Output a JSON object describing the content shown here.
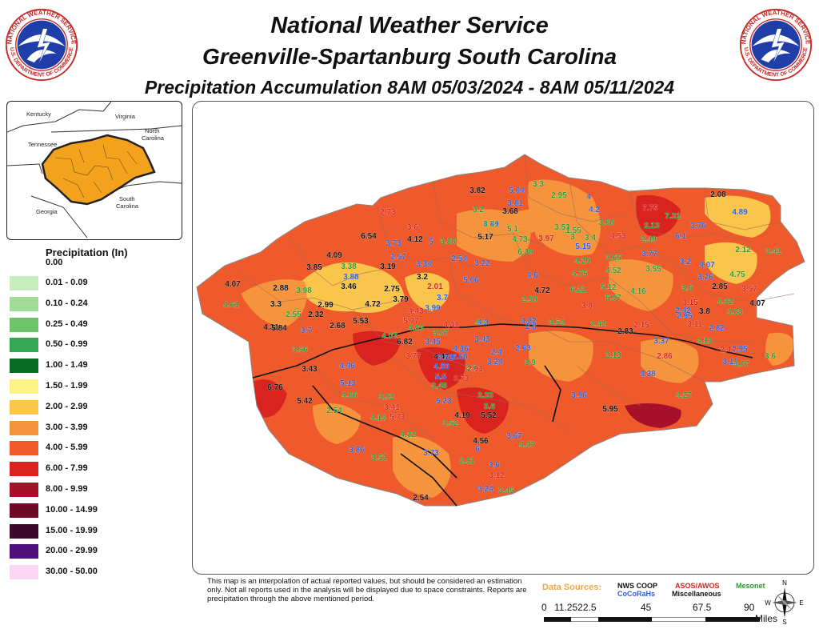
{
  "header": {
    "title_line1": "National Weather Service",
    "title_line2": "Greenville-Spartanburg South Carolina",
    "title_line3": "Precipitation Accumulation 8AM 05/03/2024 - 8AM 05/11/2024"
  },
  "logo": {
    "ring_text_top": "NATIONAL WEATHER SERVICE",
    "ring_text_bottom": "U.S. DEPARTMENT OF COMMERCE",
    "icon": "nws-logo"
  },
  "inset_map": {
    "labels": {
      "kentucky": "Kentucky",
      "virginia": "Virginia",
      "north_carolina_1": "North",
      "north_carolina_2": "Carolina",
      "tennessee": "Tennessee",
      "south_carolina_1": "South",
      "south_carolina_2": "Carolina",
      "georgia": "Georgia"
    },
    "highlight_color": "#f2a21c"
  },
  "legend": {
    "title": "Precipitation (In)",
    "zero_label": "0.00",
    "items": [
      {
        "label": "0.01 - 0.09",
        "color": "#c6ecc0"
      },
      {
        "label": "0.10 - 0.24",
        "color": "#9fdc98"
      },
      {
        "label": "0.25 - 0.49",
        "color": "#6cc46b"
      },
      {
        "label": "0.50 - 0.99",
        "color": "#34a853"
      },
      {
        "label": "1.00 - 1.49",
        "color": "#0a6b26"
      },
      {
        "label": "1.50 - 1.99",
        "color": "#fbf28a"
      },
      {
        "label": "2.00 - 2.99",
        "color": "#f9c54a"
      },
      {
        "label": "3.00 - 3.99",
        "color": "#f5943c"
      },
      {
        "label": "4.00 - 5.99",
        "color": "#ef5a2c"
      },
      {
        "label": "6.00 - 7.99",
        "color": "#d8231f"
      },
      {
        "label": "8.00 - 9.99",
        "color": "#a8102a"
      },
      {
        "label": "10.00 - 14.99",
        "color": "#6e0a25"
      },
      {
        "label": "15.00 - 19.99",
        "color": "#3d0a2a"
      },
      {
        "label": "20.00 - 29.99",
        "color": "#4c0f7a"
      },
      {
        "label": "30.00 - 50.00",
        "color": "#fad6f0"
      }
    ]
  },
  "map": {
    "colors": {
      "base": "#ef5a2c",
      "light": "#f5943c",
      "yellow": "#f9c54a",
      "dark": "#d8231f",
      "darker": "#a8102a"
    },
    "source_colors": {
      "nws_coop": "#111111",
      "cocorahs": "#2b5fd9",
      "asos_awos": "#d8231f",
      "misc": "#111111",
      "mesonet": "#2e9b2e"
    },
    "readings": [
      {
        "v": "3.82",
        "s": "nws_coop"
      },
      {
        "v": "5.04",
        "s": "cocorahs"
      },
      {
        "v": "3.3",
        "s": "mesonet"
      },
      {
        "v": "2.95",
        "s": "mesonet"
      },
      {
        "v": "4",
        "s": "cocorahs"
      },
      {
        "v": "2.08",
        "s": "nws_coop"
      },
      {
        "v": "3.2",
        "s": "mesonet"
      },
      {
        "v": "3.81",
        "s": "cocorahs"
      },
      {
        "v": "3.68",
        "s": "nws_coop"
      },
      {
        "v": "4.2",
        "s": "cocorahs"
      },
      {
        "v": "7.75",
        "s": "asos_awos"
      },
      {
        "v": "4.89",
        "s": "cocorahs"
      },
      {
        "v": "2.73",
        "s": "asos_awos"
      },
      {
        "v": "4.89",
        "s": "cocorahs"
      },
      {
        "v": "3.71",
        "s": "mesonet"
      },
      {
        "v": "3.53",
        "s": "mesonet"
      },
      {
        "v": "3.08",
        "s": "mesonet"
      },
      {
        "v": "7.31",
        "s": "mesonet"
      },
      {
        "v": "2.13",
        "s": "mesonet"
      },
      {
        "v": "3.76",
        "s": "cocorahs"
      },
      {
        "v": "3.6",
        "s": "asos_awos"
      },
      {
        "v": "5.1",
        "s": "mesonet"
      },
      {
        "v": "1.55",
        "s": "mesonet"
      },
      {
        "v": "6.54",
        "s": "nws_coop"
      },
      {
        "v": "4.12",
        "s": "nws_coop"
      },
      {
        "v": "5",
        "s": "cocorahs"
      },
      {
        "v": "3.88",
        "s": "mesonet"
      },
      {
        "v": "5.17",
        "s": "nws_coop"
      },
      {
        "v": "4.73",
        "s": "mesonet"
      },
      {
        "v": "3.97",
        "s": "asos_awos"
      },
      {
        "v": "3",
        "s": "mesonet"
      },
      {
        "v": "3.4",
        "s": "mesonet"
      },
      {
        "v": "4.53",
        "s": "asos_awos"
      },
      {
        "v": "2.49",
        "s": "mesonet"
      },
      {
        "v": "6.1",
        "s": "cocorahs"
      },
      {
        "v": "3.73",
        "s": "cocorahs"
      },
      {
        "v": "2.57",
        "s": "cocorahs"
      },
      {
        "v": "5.15",
        "s": "cocorahs"
      },
      {
        "v": "4.09",
        "s": "nws_coop"
      },
      {
        "v": "6.38",
        "s": "mesonet"
      },
      {
        "v": "2.12",
        "s": "mesonet"
      },
      {
        "v": "3.41",
        "s": "mesonet"
      },
      {
        "v": "3.77",
        "s": "cocorahs"
      },
      {
        "v": "3.38",
        "s": "mesonet"
      },
      {
        "v": "2.54",
        "s": "cocorahs"
      },
      {
        "v": "3.22",
        "s": "cocorahs"
      },
      {
        "v": "3.85",
        "s": "nws_coop"
      },
      {
        "v": "3.19",
        "s": "nws_coop"
      },
      {
        "v": "3.34",
        "s": "cocorahs"
      },
      {
        "v": "4.29",
        "s": "mesonet"
      },
      {
        "v": "3.65",
        "s": "mesonet"
      },
      {
        "v": "3.2",
        "s": "cocorahs"
      },
      {
        "v": "4.07",
        "s": "cocorahs"
      },
      {
        "v": "3.88",
        "s": "cocorahs"
      },
      {
        "v": "3.2",
        "s": "nws_coop"
      },
      {
        "v": "4.75",
        "s": "mesonet"
      },
      {
        "v": "4.52",
        "s": "mesonet"
      },
      {
        "v": "3.55",
        "s": "mesonet"
      },
      {
        "v": "3.26",
        "s": "cocorahs"
      },
      {
        "v": "4.75",
        "s": "mesonet"
      },
      {
        "v": "4.07",
        "s": "nws_coop"
      },
      {
        "v": "2.88",
        "s": "nws_coop"
      },
      {
        "v": "3.98",
        "s": "mesonet"
      },
      {
        "v": "3.46",
        "s": "nws_coop"
      },
      {
        "v": "2.75",
        "s": "nws_coop"
      },
      {
        "v": "2.01",
        "s": "asos_awos"
      },
      {
        "v": "5.06",
        "s": "cocorahs"
      },
      {
        "v": "4.6",
        "s": "cocorahs"
      },
      {
        "v": "4.72",
        "s": "nws_coop"
      },
      {
        "v": "6.21",
        "s": "mesonet"
      },
      {
        "v": "5.12",
        "s": "mesonet"
      },
      {
        "v": "4.16",
        "s": "mesonet"
      },
      {
        "v": "3.6",
        "s": "mesonet"
      },
      {
        "v": "2.85",
        "s": "nws_coop"
      },
      {
        "v": "3.57",
        "s": "asos_awos"
      },
      {
        "v": "4.61",
        "s": "mesonet"
      },
      {
        "v": "3.3",
        "s": "nws_coop"
      },
      {
        "v": "2.99",
        "s": "nws_coop"
      },
      {
        "v": "4.72",
        "s": "nws_coop"
      },
      {
        "v": "3.79",
        "s": "nws_coop"
      },
      {
        "v": "3.7",
        "s": "cocorahs"
      },
      {
        "v": "5.97",
        "s": "mesonet"
      },
      {
        "v": "2.98",
        "s": "mesonet"
      },
      {
        "v": "3.8",
        "s": "asos_awos"
      },
      {
        "v": "3.15",
        "s": "asos_awos"
      },
      {
        "v": "4.32",
        "s": "mesonet"
      },
      {
        "v": "4.07",
        "s": "nws_coop"
      },
      {
        "v": "2.55",
        "s": "mesonet"
      },
      {
        "v": "2.32",
        "s": "nws_coop"
      },
      {
        "v": "4.43",
        "s": "asos_awos"
      },
      {
        "v": "3.99",
        "s": "cocorahs"
      },
      {
        "v": "4.3",
        "s": "mesonet"
      },
      {
        "v": "2.95",
        "s": "cocorahs"
      },
      {
        "v": "2.42",
        "s": "cocorahs"
      },
      {
        "v": "3.8",
        "s": "nws_coop"
      },
      {
        "v": "4.83",
        "s": "mesonet"
      },
      {
        "v": "4.31",
        "s": "nws_coop"
      },
      {
        "v": "2.68",
        "s": "nws_coop"
      },
      {
        "v": "5.53",
        "s": "nws_coop"
      },
      {
        "v": "5.77",
        "s": "asos_awos"
      },
      {
        "v": "4.3",
        "s": "cocorahs"
      },
      {
        "v": "2.8",
        "s": "cocorahs"
      },
      {
        "v": "3.54",
        "s": "mesonet"
      },
      {
        "v": "2.42",
        "s": "mesonet"
      },
      {
        "v": "2.15",
        "s": "asos_awos"
      },
      {
        "v": "3.11",
        "s": "asos_awos"
      },
      {
        "v": "2.82",
        "s": "cocorahs"
      },
      {
        "v": "5.84",
        "s": "nws_coop"
      },
      {
        "v": "3.7",
        "s": "cocorahs"
      },
      {
        "v": "4.07",
        "s": "mesonet"
      },
      {
        "v": "3.07",
        "s": "mesonet"
      },
      {
        "v": "4.99",
        "s": "mesonet"
      },
      {
        "v": "4.41",
        "s": "asos_awos"
      },
      {
        "v": "4.82",
        "s": "cocorahs"
      },
      {
        "v": "2.83",
        "s": "nws_coop"
      },
      {
        "v": "3.37",
        "s": "cocorahs"
      },
      {
        "v": "4.13",
        "s": "mesonet"
      },
      {
        "v": "3.56",
        "s": "mesonet"
      },
      {
        "v": "6.82",
        "s": "nws_coop"
      },
      {
        "v": "3.45",
        "s": "cocorahs"
      },
      {
        "v": "3.43",
        "s": "cocorahs"
      },
      {
        "v": "2.63",
        "s": "cocorahs"
      },
      {
        "v": "2.95",
        "s": "cocorahs"
      },
      {
        "v": "2.44",
        "s": "asos_awos"
      },
      {
        "v": "6.68",
        "s": "cocorahs"
      },
      {
        "v": "3.77",
        "s": "asos_awos"
      },
      {
        "v": "4.36",
        "s": "cocorahs"
      },
      {
        "v": "2.4",
        "s": "cocorahs"
      },
      {
        "v": "3.13",
        "s": "mesonet"
      },
      {
        "v": "2.86",
        "s": "asos_awos"
      },
      {
        "v": "3.6",
        "s": "mesonet"
      },
      {
        "v": "3.11",
        "s": "cocorahs"
      },
      {
        "v": "3.07",
        "s": "mesonet"
      },
      {
        "v": "3.43",
        "s": "nws_coop"
      },
      {
        "v": "4.47",
        "s": "nws_coop"
      },
      {
        "v": "3.51",
        "s": "cocorahs"
      },
      {
        "v": "2.6",
        "s": "mesonet"
      },
      {
        "v": "3.24",
        "s": "cocorahs"
      },
      {
        "v": "3.9",
        "s": "mesonet"
      },
      {
        "v": "4.46",
        "s": "cocorahs"
      },
      {
        "v": "4.56",
        "s": "cocorahs"
      },
      {
        "v": "2.91",
        "s": "asos_awos"
      },
      {
        "v": "4.38",
        "s": "cocorahs"
      },
      {
        "v": "5.13",
        "s": "cocorahs"
      },
      {
        "v": "5.5",
        "s": "cocorahs"
      },
      {
        "v": "3.73",
        "s": "asos_awos"
      },
      {
        "v": "6.76",
        "s": "nws_coop"
      },
      {
        "v": "3.48",
        "s": "mesonet"
      },
      {
        "v": "4.66",
        "s": "mesonet"
      },
      {
        "v": "3.93",
        "s": "mesonet"
      },
      {
        "v": "3.33",
        "s": "mesonet"
      },
      {
        "v": "3.96",
        "s": "cocorahs"
      },
      {
        "v": "4.27",
        "s": "mesonet"
      },
      {
        "v": "5.42",
        "s": "nws_coop"
      },
      {
        "v": "5.23",
        "s": "cocorahs"
      },
      {
        "v": "3.41",
        "s": "asos_awos"
      },
      {
        "v": "3.6",
        "s": "mesonet"
      },
      {
        "v": "5.95",
        "s": "nws_coop"
      },
      {
        "v": "2.54",
        "s": "mesonet"
      },
      {
        "v": "4.14",
        "s": "mesonet"
      },
      {
        "v": "5.73",
        "s": "asos_awos"
      },
      {
        "v": "4.19",
        "s": "nws_coop"
      },
      {
        "v": "5.52",
        "s": "nws_coop"
      },
      {
        "v": "3.52",
        "s": "mesonet"
      },
      {
        "v": "4.32",
        "s": "mesonet"
      },
      {
        "v": "4.56",
        "s": "nws_coop"
      },
      {
        "v": "3.67",
        "s": "cocorahs"
      },
      {
        "v": "6",
        "s": "cocorahs"
      },
      {
        "v": "4.47",
        "s": "mesonet"
      },
      {
        "v": "3.86",
        "s": "cocorahs"
      },
      {
        "v": "3.51",
        "s": "mesonet"
      },
      {
        "v": "3.73",
        "s": "cocorahs"
      },
      {
        "v": "2.91",
        "s": "mesonet"
      },
      {
        "v": "3.6",
        "s": "cocorahs"
      },
      {
        "v": "3.12",
        "s": "asos_awos"
      },
      {
        "v": "3.24",
        "s": "cocorahs"
      },
      {
        "v": "3.45",
        "s": "mesonet"
      },
      {
        "v": "2.54",
        "s": "nws_coop"
      }
    ]
  },
  "footer": {
    "disclaimer": "This map is an interpolation of actual reported values, but should be considered an estimation only. Not all reports used in the analysis will be displayed due to space constraints. Reports are precipitation through the above mentioned period.",
    "data_sources_label": "Data Sources:",
    "sources": {
      "nws_coop": "NWS COOP",
      "cocorahs": "CoCoRaHs",
      "asos_awos": "ASOS/AWOS",
      "miscellaneous": "Miscellaneous",
      "mesonet": "Mesonet"
    },
    "scale_ticks": [
      "0",
      "11.2522.5",
      "45",
      "67.5",
      "90"
    ],
    "scale_unit": "Miles",
    "compass": {
      "n": "N",
      "w": "W",
      "e": "E",
      "s": "S"
    }
  }
}
